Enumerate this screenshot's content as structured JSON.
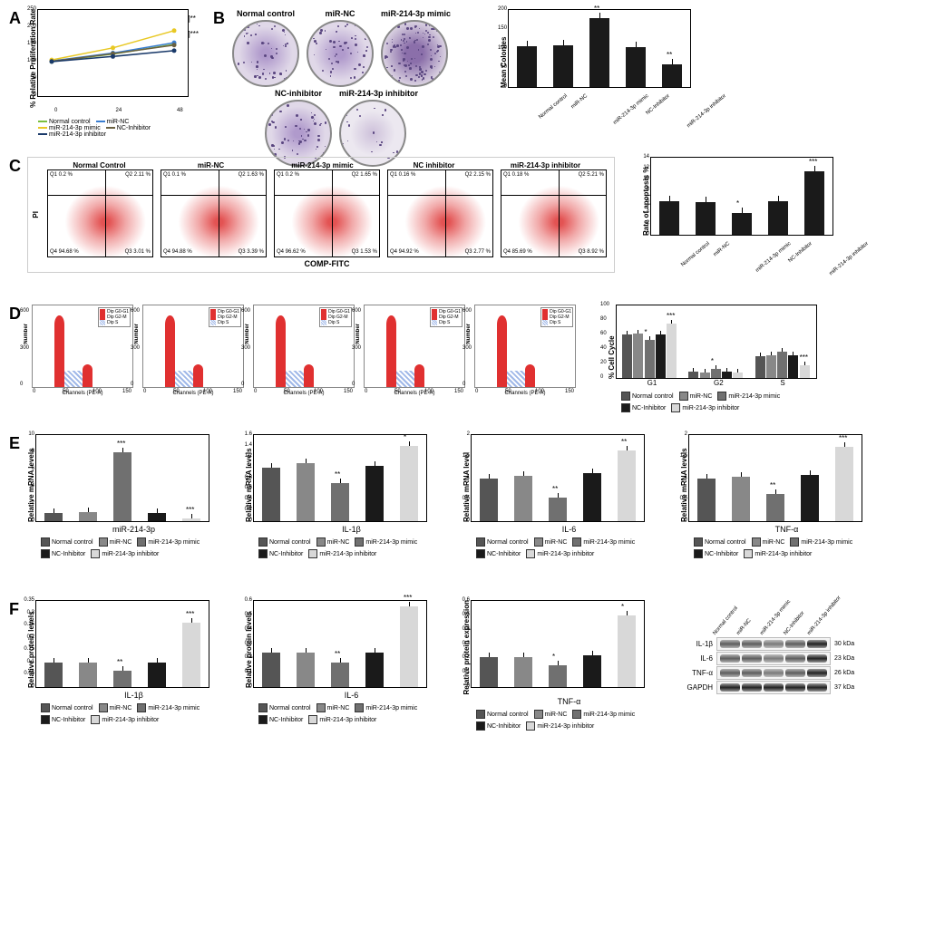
{
  "panels": {
    "A": {
      "ylabel": "% Relative Proliferation Rate",
      "ylim": [
        0,
        250
      ],
      "ytick_step": 50,
      "xticks": [
        "0",
        "24",
        "48"
      ],
      "series": [
        {
          "name": "Normal control",
          "color": "#7bbf3e",
          "values": [
            100,
            122,
            150
          ]
        },
        {
          "name": "miR-NC",
          "color": "#3a7ed0",
          "values": [
            102,
            125,
            155
          ]
        },
        {
          "name": "miR-214-3p mimic",
          "color": "#e8c824",
          "values": [
            105,
            140,
            190
          ]
        },
        {
          "name": "NC-Inhibitor",
          "color": "#6a6040",
          "values": [
            101,
            123,
            148
          ]
        },
        {
          "name": "miR-214-3p inhibitor",
          "color": "#1a3a6a",
          "values": [
            100,
            115,
            132
          ]
        }
      ],
      "sig": [
        "**",
        "***"
      ]
    },
    "B": {
      "conditions_top": [
        "Normal control",
        "miR-NC",
        "miR-214-3p mimic"
      ],
      "conditions_bottom": [
        "NC-inhibitor",
        "miR-214-3p inhibitor"
      ],
      "density": {
        "Normal control": "med",
        "miR-NC": "med",
        "miR-214-3p mimic": "dense",
        "NC-inhibitor": "med",
        "miR-214-3p inhibitor": "sparse"
      },
      "bar": {
        "ylabel": "Mean Colonies",
        "ylim": [
          0,
          200
        ],
        "ytick_step": 50,
        "values": [
          105,
          108,
          178,
          104,
          58
        ],
        "sig": [
          "",
          "",
          "**",
          "",
          "**"
        ],
        "bar_color": "#1a1a1a"
      }
    },
    "C": {
      "ylabel_plot": "PI",
      "xlabel_plot": "COMP-FITC",
      "titles": [
        "Normal Control",
        "miR-NC",
        "miR-214-3p mimic",
        "NC inhibitor",
        "miR-214-3p inhibitor"
      ],
      "quads": [
        {
          "q1": "Q1 0.2 %",
          "q2": "Q2 2.11 %",
          "q3": "Q3 3.01 %",
          "q4": "Q4 94.68 %"
        },
        {
          "q1": "Q1 0.1 %",
          "q2": "Q2 1.63 %",
          "q3": "Q3 3.39 %",
          "q4": "Q4 94.88 %"
        },
        {
          "q1": "Q1 0.2 %",
          "q2": "Q2 1.65 %",
          "q3": "Q3 1.53 %",
          "q4": "Q4 96.62 %"
        },
        {
          "q1": "Q1 0.16 %",
          "q2": "Q2 2.15 %",
          "q3": "Q3 2.77 %",
          "q4": "Q4 94.92 %"
        },
        {
          "q1": "Q1 0.18 %",
          "q2": "Q2 5.21 %",
          "q3": "Q3 8.92 %",
          "q4": "Q4 85.69 %"
        }
      ],
      "bar": {
        "ylabel": "Rate of apoptosis %",
        "ylim": [
          0,
          14
        ],
        "ytick_step": 2,
        "values": [
          6.1,
          6.0,
          4.0,
          6.1,
          11.5
        ],
        "sig": [
          "",
          "",
          "*",
          "",
          "***"
        ],
        "bar_color": "#1a1a1a"
      }
    },
    "D": {
      "hist_legend": [
        "Dip G0-G1",
        "Dip G2-M",
        "Dip S"
      ],
      "hist_colors": [
        "#e03030",
        "#e03030",
        "#a0b8e8"
      ],
      "hist_ylabel": "Number",
      "hist_xlabel": "Channels (PE-A)",
      "bar": {
        "ylabel": "% Cell Cycle",
        "ylim": [
          0,
          100
        ],
        "ytick_step": 20,
        "groups": [
          "G1",
          "G2",
          "S"
        ],
        "series": [
          {
            "name": "Normal control",
            "color": "#555555",
            "values": [
              60,
              9,
              30
            ]
          },
          {
            "name": "miR-NC",
            "color": "#888888",
            "values": [
              61,
              8,
              31
            ]
          },
          {
            "name": "miR-214-3p mimic",
            "color": "#707070",
            "values": [
              52,
              12,
              36
            ]
          },
          {
            "name": "NC-Inhibitor",
            "color": "#1a1a1a",
            "values": [
              60,
              9,
              31
            ]
          },
          {
            "name": "miR-214-3p inhibitor",
            "color": "#d8d8d8",
            "values": [
              75,
              7,
              18
            ]
          }
        ],
        "sig": {
          "G1": [
            "",
            "",
            "*",
            "",
            "***"
          ],
          "G2": [
            "",
            "",
            "*",
            "",
            ""
          ],
          "S": [
            "",
            "",
            "",
            "",
            "***"
          ]
        }
      }
    },
    "E": {
      "ylabel": "Relative mRNA levels",
      "legend": [
        {
          "name": "Normal control",
          "color": "#555555"
        },
        {
          "name": "miR-NC",
          "color": "#888888"
        },
        {
          "name": "miR-214-3p mimic",
          "color": "#707070"
        },
        {
          "name": "NC-Inhibitor",
          "color": "#1a1a1a"
        },
        {
          "name": "miR-214-3p inhibitor",
          "color": "#d8d8d8"
        }
      ],
      "charts": [
        {
          "title": "miR-214-3p",
          "ylim": [
            0,
            10
          ],
          "ytick_step": 2,
          "values": [
            1.0,
            1.05,
            8.0,
            1.0,
            0.3
          ],
          "sig": [
            "",
            "",
            "***",
            "",
            "***"
          ]
        },
        {
          "title": "IL-1β",
          "ylim": [
            0,
            1.6
          ],
          "ytick_step": 0.2,
          "values": [
            1.0,
            1.08,
            0.7,
            1.02,
            1.4
          ],
          "sig": [
            "",
            "",
            "**",
            "",
            "*"
          ],
          "ylabel": "Relative mRNA levels"
        },
        {
          "title": "IL-6",
          "ylim": [
            0,
            2.0
          ],
          "ytick_step": 0.5,
          "values": [
            1.0,
            1.05,
            0.55,
            1.12,
            1.65
          ],
          "sig": [
            "",
            "",
            "**",
            "",
            "**"
          ],
          "ylabel": "Relative mRNA level"
        },
        {
          "title": "TNF-α",
          "ylim": [
            0,
            2.0
          ],
          "ytick_step": 0.5,
          "values": [
            1.0,
            1.03,
            0.63,
            1.08,
            1.72
          ],
          "sig": [
            "",
            "",
            "**",
            "",
            "***"
          ],
          "ylabel": "Relative mRNA levels"
        }
      ]
    },
    "F": {
      "ylabel": "Relative protein levels",
      "charts": [
        {
          "title": "IL-1β",
          "ylim": [
            0,
            0.35
          ],
          "ytick_step": 0.05,
          "values": [
            0.1,
            0.1,
            0.065,
            0.1,
            0.26
          ],
          "sig": [
            "",
            "",
            "**",
            "",
            "***"
          ]
        },
        {
          "title": "IL-6",
          "ylim": [
            0,
            0.6
          ],
          "ytick_step": 0.1,
          "values": [
            0.24,
            0.24,
            0.17,
            0.24,
            0.56
          ],
          "sig": [
            "",
            "",
            "**",
            "",
            "***"
          ]
        },
        {
          "title": "TNF-α",
          "ylim": [
            0,
            0.6
          ],
          "ytick_step": 0.1,
          "values": [
            0.21,
            0.21,
            0.15,
            0.22,
            0.5
          ],
          "sig": [
            "",
            "",
            "*",
            "",
            "*"
          ],
          "ylabel": "Relative protein expression"
        }
      ],
      "blot": {
        "lanes": [
          "Normal control",
          "miR-NC",
          "miR-214-3p mimic",
          "NC-Inhibitor",
          "miR-214-3p inhibitor"
        ],
        "rows": [
          {
            "name": "IL-1β",
            "mw": "30 kDa",
            "intensity": [
              0.6,
              0.6,
              0.4,
              0.6,
              1.0
            ]
          },
          {
            "name": "IL-6",
            "mw": "23 kDa",
            "intensity": [
              0.6,
              0.6,
              0.4,
              0.6,
              1.0
            ]
          },
          {
            "name": "TNF-α",
            "mw": "26 kDa",
            "intensity": [
              0.6,
              0.6,
              0.4,
              0.6,
              1.0
            ]
          },
          {
            "name": "GAPDH",
            "mw": "37 kDa",
            "intensity": [
              1.0,
              1.0,
              1.0,
              1.0,
              1.0
            ]
          }
        ]
      }
    }
  },
  "conditions": [
    "Normal control",
    "miR-NC",
    "miR-214-3p mimic",
    "NC-Inhibitor",
    "miR-214-3p inhibitor"
  ]
}
